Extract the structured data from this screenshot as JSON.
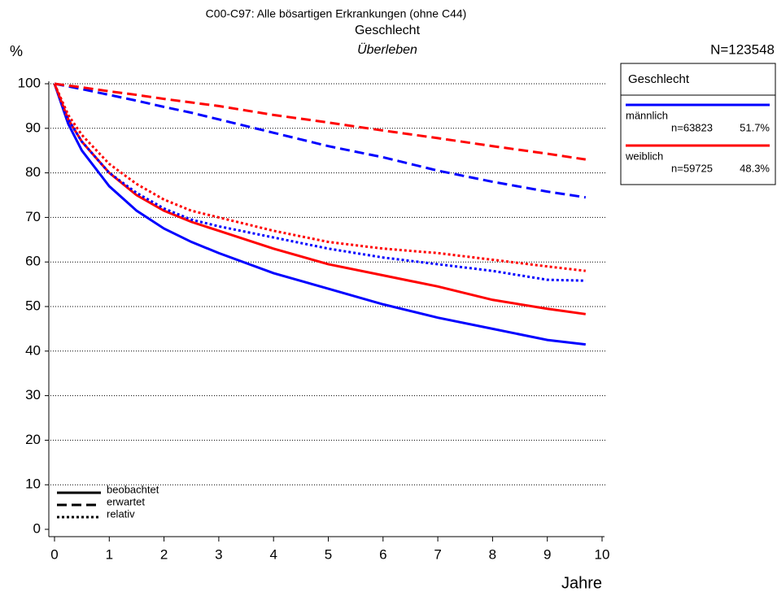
{
  "chart_data": {
    "type": "line",
    "title": "C00-C97: Alle bösartigen Erkrankungen (ohne C44)",
    "subtitle": "Geschlecht",
    "caption": "Überleben",
    "ylabel": "%",
    "xlabel": "Jahre",
    "annotation": "N=123548",
    "x": [
      0,
      0.25,
      0.5,
      1,
      1.5,
      2,
      2.5,
      3,
      4,
      5,
      6,
      7,
      8,
      9,
      9.7
    ],
    "xlim": [
      0,
      10
    ],
    "xticks": [
      0,
      1,
      2,
      3,
      4,
      5,
      6,
      7,
      8,
      9,
      10
    ],
    "ylim": [
      0,
      100
    ],
    "yticks": [
      0,
      10,
      20,
      30,
      40,
      50,
      60,
      70,
      80,
      90,
      100
    ],
    "grid": true,
    "legend": {
      "title": "Geschlecht",
      "groups": [
        {
          "name": "männlich",
          "color": "#0000ff",
          "n": "n=63823",
          "share": "51.7%"
        },
        {
          "name": "weiblich",
          "color": "#ff0000",
          "n": "n=59725",
          "share": "48.3%"
        }
      ],
      "styles": [
        {
          "name": "beobachtet",
          "dash": "solid"
        },
        {
          "name": "erwartet",
          "dash": "dashed"
        },
        {
          "name": "relativ",
          "dash": "dotted"
        }
      ]
    },
    "series": [
      {
        "color": "#0000ff",
        "dash": "solid",
        "values": [
          100,
          91,
          85,
          77,
          71.5,
          67.5,
          64.5,
          62,
          57.5,
          54,
          50.5,
          47.5,
          45,
          42.5,
          41.5
        ]
      },
      {
        "color": "#ff0000",
        "dash": "solid",
        "values": [
          100,
          92,
          87,
          80,
          75,
          71.5,
          69,
          67,
          63,
          59.5,
          57,
          54.5,
          51.5,
          49.5,
          48.3
        ]
      },
      {
        "color": "#0000ff",
        "dash": "dashed",
        "values": [
          100,
          99.4,
          98.8,
          97.5,
          96.2,
          94.8,
          93.5,
          92,
          89,
          86,
          83.5,
          80.5,
          78,
          75.8,
          74.5
        ]
      },
      {
        "color": "#ff0000",
        "dash": "dashed",
        "values": [
          100,
          99.6,
          99.2,
          98.3,
          97.5,
          96.6,
          95.8,
          95,
          93,
          91.3,
          89.5,
          87.8,
          86,
          84.3,
          83
        ]
      },
      {
        "color": "#0000ff",
        "dash": "dotted",
        "values": [
          100,
          92,
          87,
          80,
          75.5,
          72,
          69.5,
          68,
          65.5,
          63,
          61,
          59.5,
          58,
          56,
          55.8
        ]
      },
      {
        "color": "#ff0000",
        "dash": "dotted",
        "values": [
          100,
          93,
          88.5,
          82,
          77.5,
          74,
          71.5,
          70,
          67,
          64.5,
          63,
          62,
          60.5,
          59,
          58
        ]
      }
    ]
  }
}
